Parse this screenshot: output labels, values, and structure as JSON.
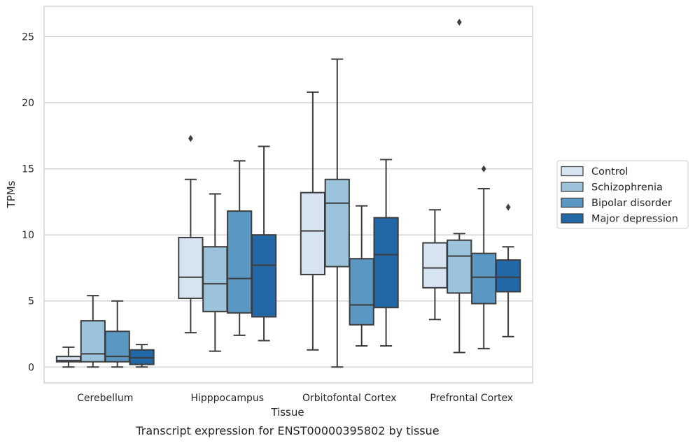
{
  "chart_data": {
    "type": "boxplot",
    "caption": "Transcript expression for ENST00000395802 by tissue",
    "xlabel": "Tissue",
    "ylabel": "TPMs",
    "ylim": [
      -1.2,
      27.3
    ],
    "yticks": [
      0,
      5,
      10,
      15,
      20,
      25
    ],
    "grid": "horizontal",
    "legend_position": "right",
    "categories": [
      "Cerebellum",
      "Hipppocampus",
      "Orbitofontal Cortex",
      "Prefrontal Cortex"
    ],
    "series": [
      {
        "name": "Control",
        "color": "#d6e4f2",
        "boxes": [
          {
            "whislo": 0.0,
            "q1": 0.4,
            "med": 0.5,
            "q3": 0.8,
            "whishi": 1.5,
            "fliers": []
          },
          {
            "whislo": 2.6,
            "q1": 5.2,
            "med": 6.8,
            "q3": 9.8,
            "whishi": 14.2,
            "fliers": [
              17.3
            ]
          },
          {
            "whislo": 1.3,
            "q1": 7.0,
            "med": 10.3,
            "q3": 13.2,
            "whishi": 20.8,
            "fliers": []
          },
          {
            "whislo": 3.6,
            "q1": 6.0,
            "med": 7.5,
            "q3": 9.4,
            "whishi": 11.9,
            "fliers": []
          }
        ]
      },
      {
        "name": "Schizophrenia",
        "color": "#9bc3db",
        "boxes": [
          {
            "whislo": 0.0,
            "q1": 0.4,
            "med": 1.0,
            "q3": 3.5,
            "whishi": 5.4,
            "fliers": []
          },
          {
            "whislo": 1.2,
            "q1": 4.2,
            "med": 6.3,
            "q3": 9.1,
            "whishi": 13.1,
            "fliers": []
          },
          {
            "whislo": 0.0,
            "q1": 7.6,
            "med": 12.4,
            "q3": 14.2,
            "whishi": 23.3,
            "fliers": []
          },
          {
            "whislo": 1.1,
            "q1": 5.6,
            "med": 8.4,
            "q3": 9.6,
            "whishi": 10.1,
            "fliers": [
              26.1
            ]
          }
        ]
      },
      {
        "name": "Bipolar disorder",
        "color": "#5a97c3",
        "boxes": [
          {
            "whislo": 0.0,
            "q1": 0.4,
            "med": 0.8,
            "q3": 2.7,
            "whishi": 5.0,
            "fliers": []
          },
          {
            "whislo": 2.4,
            "q1": 4.1,
            "med": 6.7,
            "q3": 11.8,
            "whishi": 15.6,
            "fliers": []
          },
          {
            "whislo": 1.6,
            "q1": 3.2,
            "med": 4.7,
            "q3": 8.2,
            "whishi": 12.2,
            "fliers": []
          },
          {
            "whislo": 1.4,
            "q1": 4.8,
            "med": 6.8,
            "q3": 8.6,
            "whishi": 13.5,
            "fliers": [
              15.0
            ]
          }
        ]
      },
      {
        "name": "Major depression",
        "color": "#2368a6",
        "boxes": [
          {
            "whislo": 0.0,
            "q1": 0.2,
            "med": 0.7,
            "q3": 1.3,
            "whishi": 1.7,
            "fliers": []
          },
          {
            "whislo": 2.0,
            "q1": 3.8,
            "med": 7.7,
            "q3": 10.0,
            "whishi": 16.7,
            "fliers": []
          },
          {
            "whislo": 1.6,
            "q1": 4.5,
            "med": 8.5,
            "q3": 11.3,
            "whishi": 15.7,
            "fliers": []
          },
          {
            "whislo": 2.3,
            "q1": 5.7,
            "med": 6.8,
            "q3": 8.1,
            "whishi": 9.1,
            "fliers": [
              12.1
            ]
          }
        ]
      }
    ]
  }
}
